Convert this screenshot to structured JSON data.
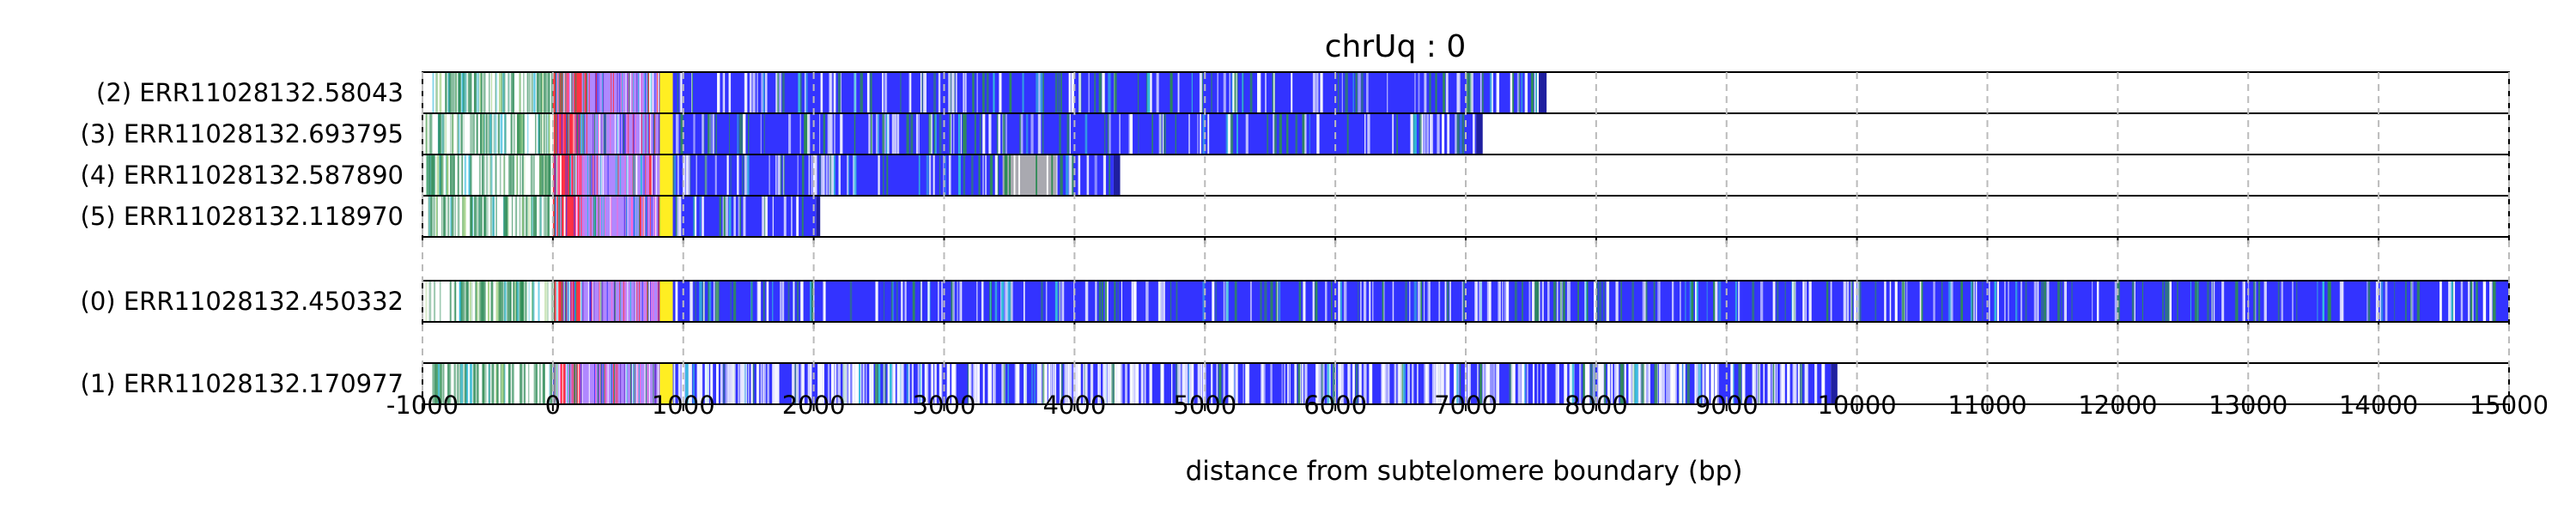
{
  "chart_data": {
    "type": "bar",
    "title": "chrUq : 0",
    "xlabel": "distance from subtelomere boundary (bp)",
    "ylabel": "",
    "xlim": [
      -1000,
      15000
    ],
    "xticks": [
      -1000,
      0,
      1000,
      2000,
      3000,
      4000,
      5000,
      6000,
      7000,
      8000,
      9000,
      10000,
      11000,
      12000,
      13000,
      14000,
      15000
    ],
    "grid": "vertical dashed",
    "colors": {
      "repeat": "#3333ff",
      "green": "#2e8b57",
      "red": "#ff3344",
      "violet": "#b088ff",
      "yellow": "#ffee22",
      "cyan": "#33bbdd",
      "gray": "#a9a9b0",
      "grid": "#bbbbbb"
    },
    "groups": [
      {
        "rows": [
          {
            "label": "(2) ERR11028132.58043",
            "end": 7560,
            "cap": 7620
          },
          {
            "label": "(3) ERR11028132.693795",
            "end": 7080,
            "cap": 7130
          },
          {
            "label": "(4) ERR11028132.587890",
            "end": 4300,
            "cap": 4350,
            "gray_region": [
              3450,
              3850
            ]
          },
          {
            "label": "(5) ERR11028132.118970",
            "end": 2020,
            "cap": 2050
          }
        ]
      },
      {
        "rows": [
          {
            "label": "(0) ERR11028132.450332",
            "end": 15000,
            "cap": 15000
          }
        ]
      },
      {
        "rows": [
          {
            "label": "(1) ERR11028132.170977",
            "end": 9800,
            "cap": 9850,
            "dense_white": true
          }
        ]
      }
    ]
  }
}
